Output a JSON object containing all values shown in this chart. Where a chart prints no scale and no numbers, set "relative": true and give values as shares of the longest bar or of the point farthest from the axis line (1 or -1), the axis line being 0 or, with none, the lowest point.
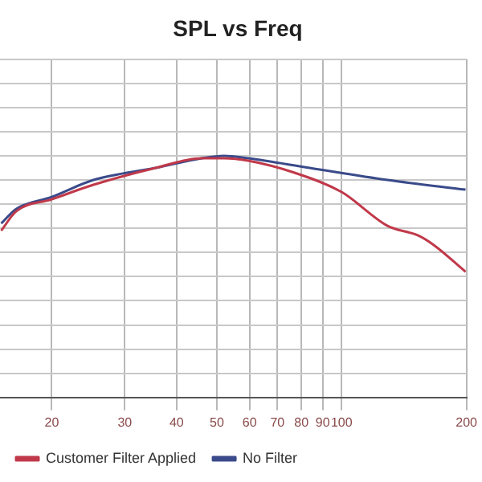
{
  "chart_data": {
    "type": "line",
    "title": "SPL vs Freq",
    "relative": true,
    "log": "x",
    "xlim": [
      15,
      200
    ],
    "xticks": [
      20,
      30,
      40,
      50,
      60,
      70,
      80,
      90,
      100,
      200
    ],
    "grid": true,
    "legend": "bottom",
    "marker": "none",
    "series": [
      {
        "name": "Customer Filter Applied",
        "color": "#c0394a",
        "x": [
          15.1,
          16.4,
          20,
          25.2,
          35.6,
          46,
          52,
          59.5,
          77,
          100,
          129,
          153,
          167,
          199
        ],
        "values": [
          0.69,
          0.77,
          0.82,
          0.88,
          0.95,
          0.99,
          0.99,
          0.98,
          0.93,
          0.85,
          0.71,
          0.67,
          0.63,
          0.52
        ]
      },
      {
        "name": "No Filter",
        "color": "#3a4a8a",
        "x": [
          15.1,
          16.4,
          20,
          25.2,
          35.6,
          46,
          52,
          59.5,
          83.7,
          129,
          199
        ],
        "values": [
          0.72,
          0.78,
          0.83,
          0.9,
          0.95,
          0.99,
          1,
          0.99,
          0.95,
          0.9,
          0.86
        ]
      }
    ]
  }
}
